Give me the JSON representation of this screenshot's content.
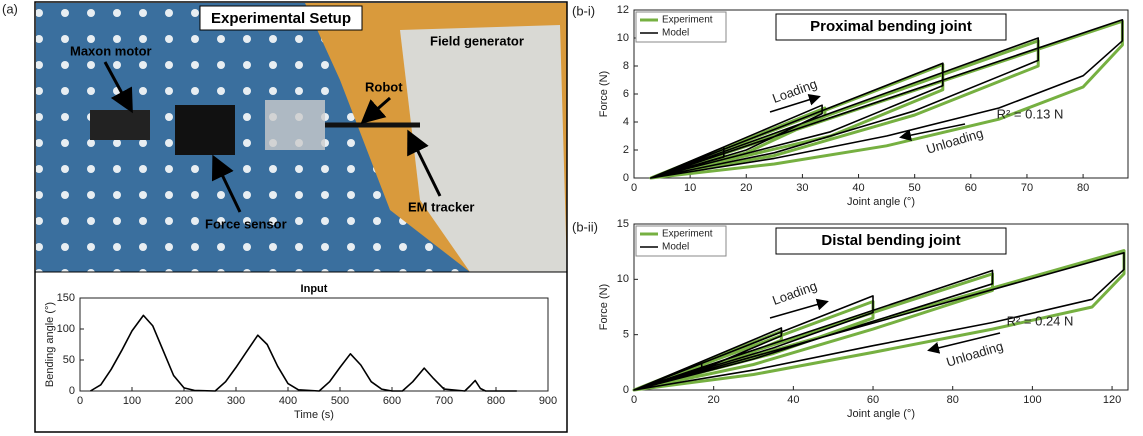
{
  "panel_labels": [
    "(a)",
    "(b-i)",
    "(b-ii)"
  ],
  "photo": {
    "title": "Experimental Setup",
    "labels": [
      "Maxon motor",
      "Field generator",
      "Robot",
      "Force sensor",
      "EM tracker"
    ]
  },
  "chart_data": [
    {
      "type": "line",
      "title": "Input",
      "x_label": "Time (s)",
      "y_label": "Bending angle (°)",
      "xlim": [
        0,
        900
      ],
      "xticks": [
        0,
        100,
        200,
        300,
        400,
        500,
        600,
        700,
        800,
        900
      ],
      "ylim": [
        0,
        150
      ],
      "yticks": [
        0,
        50,
        100,
        150
      ],
      "series": [
        {
          "color": "#000000",
          "x": [
            20,
            40,
            60,
            80,
            100,
            122,
            140,
            160,
            180,
            200,
            220,
            260,
            280,
            300,
            320,
            342,
            360,
            380,
            400,
            420,
            460,
            480,
            500,
            520,
            540,
            560,
            580,
            600,
            620,
            640,
            662,
            680,
            700,
            740,
            750,
            760,
            770,
            780,
            840
          ],
          "values": [
            0,
            10,
            35,
            65,
            97,
            122,
            105,
            65,
            25,
            5,
            1,
            0,
            15,
            38,
            63,
            90,
            75,
            40,
            12,
            2,
            0,
            15,
            38,
            60,
            42,
            15,
            3,
            0,
            0,
            15,
            37,
            20,
            3,
            0,
            8,
            17,
            4,
            0,
            0
          ]
        }
      ]
    },
    {
      "type": "line",
      "title": "Proximal bending joint",
      "x_label": "Joint angle (°)",
      "y_label": "Force (N)",
      "xlim": [
        0,
        88
      ],
      "xticks": [
        0,
        10,
        20,
        30,
        40,
        50,
        60,
        70,
        80
      ],
      "ylim": [
        0,
        12
      ],
      "yticks": [
        0,
        2,
        4,
        6,
        8,
        10,
        12
      ],
      "legend": "upper left",
      "annotations": [
        "Loading",
        "Unloading",
        "R² = 0.13 N"
      ],
      "series": [
        {
          "name": "Experiment",
          "color": "#76b041",
          "x": [
            3,
            16,
            16,
            3,
            34,
            34,
            20,
            3,
            55,
            55,
            35,
            3,
            72,
            72,
            50,
            25,
            3,
            87,
            87,
            80,
            65,
            45,
            25,
            3
          ],
          "values": [
            0,
            2.1,
            1.6,
            0,
            5.0,
            4.4,
            1.8,
            0,
            8.1,
            6.3,
            3.0,
            0,
            9.8,
            8.0,
            4.5,
            1.6,
            0,
            11.2,
            9.5,
            6.5,
            4.2,
            2.3,
            1.0,
            0
          ]
        },
        {
          "name": "Model",
          "color": "#000000",
          "x": [
            3,
            16,
            16,
            3,
            33.5,
            33.5,
            20,
            3,
            55,
            55,
            35,
            3,
            72,
            72,
            50,
            25,
            3,
            87,
            87,
            80,
            65,
            45,
            25,
            3
          ],
          "values": [
            0,
            2.2,
            1.5,
            0,
            5.2,
            4.6,
            2.0,
            0,
            8.2,
            6.6,
            3.3,
            0,
            10.0,
            8.4,
            4.8,
            1.8,
            0,
            11.3,
            9.8,
            7.3,
            5.0,
            3.0,
            1.4,
            0
          ]
        }
      ]
    },
    {
      "type": "line",
      "title": "Distal bending joint",
      "x_label": "Joint angle (°)",
      "y_label": "Force (N)",
      "xlim": [
        0,
        124
      ],
      "xticks": [
        0,
        20,
        40,
        60,
        80,
        100,
        120
      ],
      "ylim": [
        0,
        15
      ],
      "yticks": [
        0,
        5,
        10,
        15
      ],
      "legend": "upper left",
      "annotations": [
        "Loading",
        "Unloading",
        "R² = 0.24 N"
      ],
      "series": [
        {
          "name": "Experiment",
          "color": "#76b041",
          "x": [
            0,
            17,
            17,
            0,
            37,
            37,
            20,
            0,
            60,
            60,
            35,
            0,
            90,
            90,
            60,
            30,
            0,
            123,
            123,
            115,
            90,
            60,
            30,
            0
          ],
          "values": [
            0,
            2.2,
            1.6,
            0,
            5.3,
            4.5,
            2.0,
            0,
            8.0,
            6.5,
            3.3,
            0,
            10.5,
            9.0,
            5.5,
            2.3,
            0,
            12.6,
            10.5,
            7.5,
            5.5,
            3.4,
            1.4,
            0
          ]
        },
        {
          "name": "Model",
          "color": "#000000",
          "x": [
            0,
            17,
            17,
            0,
            37,
            37,
            20,
            0,
            60,
            60,
            35,
            0,
            90,
            90,
            60,
            30,
            0,
            123,
            123,
            115,
            90,
            60,
            30,
            0
          ],
          "values": [
            0,
            2.4,
            1.8,
            0,
            5.6,
            4.9,
            2.3,
            0,
            8.5,
            7.0,
            3.8,
            0,
            10.8,
            9.6,
            6.2,
            2.8,
            0,
            12.4,
            10.9,
            8.2,
            6.1,
            4.0,
            1.8,
            0
          ]
        }
      ]
    }
  ]
}
